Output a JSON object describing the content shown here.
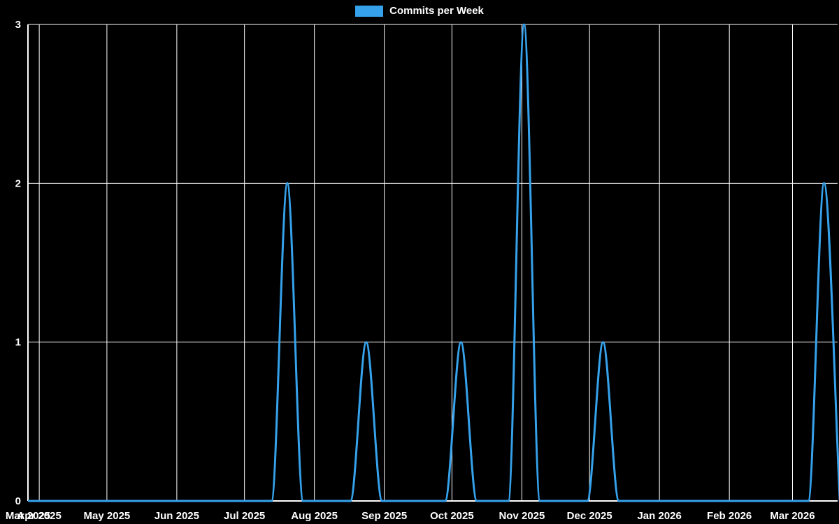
{
  "chart_data": {
    "type": "line",
    "title": "Commits per Week",
    "legend": "Commits per Week",
    "color": "#36a2eb",
    "background": "#000000",
    "grid_color": "#ffffff",
    "text_color": "#ffffff",
    "ylim": [
      0,
      3
    ],
    "yticks": [
      0,
      1,
      2,
      3
    ],
    "xlim": [
      "2025-03-27",
      "2026-03-21"
    ],
    "xticks": [
      {
        "date": "2025-03-27",
        "label": "Mar 2025"
      },
      {
        "date": "2025-04-01",
        "label": "Apr 2025"
      },
      {
        "date": "2025-05-01",
        "label": "May 2025"
      },
      {
        "date": "2025-06-01",
        "label": "Jun 2025"
      },
      {
        "date": "2025-07-01",
        "label": "Jul 2025"
      },
      {
        "date": "2025-08-01",
        "label": "Aug 2025"
      },
      {
        "date": "2025-09-01",
        "label": "Sep 2025"
      },
      {
        "date": "2025-10-01",
        "label": "Oct 2025"
      },
      {
        "date": "2025-11-01",
        "label": "Nov 2025"
      },
      {
        "date": "2025-12-01",
        "label": "Dec 2025"
      },
      {
        "date": "2026-01-01",
        "label": "Jan 2026"
      },
      {
        "date": "2026-02-01",
        "label": "Feb 2026"
      },
      {
        "date": "2026-03-01",
        "label": "Mar 2026"
      }
    ],
    "series": [
      {
        "name": "Commits per Week",
        "points": [
          [
            "2025-03-23",
            0
          ],
          [
            "2025-03-30",
            0
          ],
          [
            "2025-04-06",
            0
          ],
          [
            "2025-04-13",
            0
          ],
          [
            "2025-04-20",
            0
          ],
          [
            "2025-04-27",
            0
          ],
          [
            "2025-05-04",
            0
          ],
          [
            "2025-05-11",
            0
          ],
          [
            "2025-05-18",
            0
          ],
          [
            "2025-05-25",
            0
          ],
          [
            "2025-06-01",
            0
          ],
          [
            "2025-06-08",
            0
          ],
          [
            "2025-06-15",
            0
          ],
          [
            "2025-06-22",
            0
          ],
          [
            "2025-06-29",
            0
          ],
          [
            "2025-07-06",
            0
          ],
          [
            "2025-07-13",
            0
          ],
          [
            "2025-07-20",
            2
          ],
          [
            "2025-07-27",
            0
          ],
          [
            "2025-08-03",
            0
          ],
          [
            "2025-08-10",
            0
          ],
          [
            "2025-08-17",
            0
          ],
          [
            "2025-08-24",
            1
          ],
          [
            "2025-08-31",
            0
          ],
          [
            "2025-09-07",
            0
          ],
          [
            "2025-09-14",
            0
          ],
          [
            "2025-09-21",
            0
          ],
          [
            "2025-09-28",
            0
          ],
          [
            "2025-10-05",
            1
          ],
          [
            "2025-10-12",
            0
          ],
          [
            "2025-10-19",
            0
          ],
          [
            "2025-10-26",
            0
          ],
          [
            "2025-11-02",
            3
          ],
          [
            "2025-11-09",
            0
          ],
          [
            "2025-11-16",
            0
          ],
          [
            "2025-11-23",
            0
          ],
          [
            "2025-11-30",
            0
          ],
          [
            "2025-12-07",
            1
          ],
          [
            "2025-12-14",
            0
          ],
          [
            "2025-12-21",
            0
          ],
          [
            "2025-12-28",
            0
          ],
          [
            "2026-01-04",
            0
          ],
          [
            "2026-01-11",
            0
          ],
          [
            "2026-01-18",
            0
          ],
          [
            "2026-01-25",
            0
          ],
          [
            "2026-02-01",
            0
          ],
          [
            "2026-02-08",
            0
          ],
          [
            "2026-02-15",
            0
          ],
          [
            "2026-02-22",
            0
          ],
          [
            "2026-03-01",
            0
          ],
          [
            "2026-03-08",
            0
          ],
          [
            "2026-03-15",
            2
          ],
          [
            "2026-03-22",
            0
          ]
        ]
      }
    ]
  }
}
